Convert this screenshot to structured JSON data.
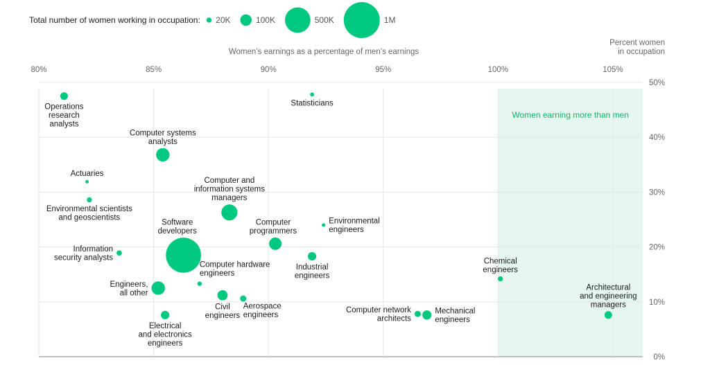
{
  "colors": {
    "bubble": "#00c97f",
    "region_fill": "#e6f7ef",
    "region_label": "#16b16e",
    "grid": "#e6e6e6",
    "baseline": "#999999"
  },
  "legend": {
    "title": "Total number of women working in occupation:",
    "items": [
      {
        "label": "20K",
        "value": 20000
      },
      {
        "label": "100K",
        "value": 100000
      },
      {
        "label": "500K",
        "value": 500000
      },
      {
        "label": "1M",
        "value": 1000000
      }
    ]
  },
  "chart_data": {
    "type": "scatter",
    "xlabel": "Women’s earnings as a percentage of men’s earnings",
    "ylabel": "Percent women in occupation",
    "ylabel_lines": [
      "Percent women",
      "in occupation"
    ],
    "xlim": [
      80,
      106.3
    ],
    "ylim": [
      0,
      50
    ],
    "x_ticks": [
      {
        "value": 80,
        "label": "80%"
      },
      {
        "value": 85,
        "label": "85%"
      },
      {
        "value": 90,
        "label": "90%"
      },
      {
        "value": 95,
        "label": "95%"
      },
      {
        "value": 100,
        "label": "100%"
      },
      {
        "value": 105,
        "label": "105%"
      }
    ],
    "y_ticks": [
      {
        "value": 0,
        "label": "0%"
      },
      {
        "value": 10,
        "label": "10%"
      },
      {
        "value": 20,
        "label": "20%"
      },
      {
        "value": 30,
        "label": "30%"
      },
      {
        "value": 40,
        "label": "40%"
      },
      {
        "value": 50,
        "label": "50%"
      }
    ],
    "shaded_region": {
      "x_from": 100,
      "x_to": 106.3,
      "label": "Women earning more than men"
    },
    "points": [
      {
        "name": "Operations research analysts",
        "label_lines": [
          "Operations",
          "research",
          "analysts"
        ],
        "x": 81.1,
        "y": 47.5,
        "size": 45000,
        "label_pos": "below"
      },
      {
        "name": "Statisticians",
        "label_lines": [
          "Statisticians"
        ],
        "x": 91.9,
        "y": 47.8,
        "size": 13000,
        "label_pos": "below"
      },
      {
        "name": "Computer systems analysts",
        "label_lines": [
          "Computer systems",
          "analysts"
        ],
        "x": 85.4,
        "y": 36.8,
        "size": 140000,
        "label_pos": "above"
      },
      {
        "name": "Actuaries",
        "label_lines": [
          "Actuaries"
        ],
        "x": 82.1,
        "y": 31.9,
        "size": 9000,
        "label_pos": "above"
      },
      {
        "name": "Environmental scientists and geoscientists",
        "label_lines": [
          "Environmental scientists",
          "and geoscientists"
        ],
        "x": 82.2,
        "y": 28.6,
        "size": 20000,
        "label_pos": "below"
      },
      {
        "name": "Computer and information systems managers",
        "label_lines": [
          "Computer and",
          "information systems",
          "managers"
        ],
        "x": 88.3,
        "y": 26.3,
        "size": 200000,
        "label_pos": "above"
      },
      {
        "name": "Computer programmers",
        "label_lines": [
          "Computer",
          "programmers"
        ],
        "x": 90.3,
        "y": 20.6,
        "size": 120000,
        "label_pos": "above-left"
      },
      {
        "name": "Environmental engineers",
        "label_lines": [
          "Environmental",
          "engineers"
        ],
        "x": 92.4,
        "y": 24.0,
        "size": 10000,
        "label_pos": "right"
      },
      {
        "name": "Software developers",
        "label_lines": [
          "Software",
          "developers"
        ],
        "x": 86.3,
        "y": 18.5,
        "size": 950000,
        "label_pos": "above-left"
      },
      {
        "name": "Information security analysts",
        "label_lines": [
          "Information",
          "security analysts"
        ],
        "x": 83.5,
        "y": 18.9,
        "size": 22000,
        "label_pos": "left"
      },
      {
        "name": "Industrial engineers",
        "label_lines": [
          "Industrial",
          "engineers"
        ],
        "x": 91.9,
        "y": 18.3,
        "size": 55000,
        "label_pos": "below"
      },
      {
        "name": "Computer hardware engineers",
        "label_lines": [
          "Computer hardware",
          "engineers"
        ],
        "x": 87.0,
        "y": 13.3,
        "size": 15000,
        "label_pos": "above-right"
      },
      {
        "name": "Engineers, all other",
        "label_lines": [
          "Engineers,",
          "all other"
        ],
        "x": 85.2,
        "y": 12.5,
        "size": 140000,
        "label_pos": "left"
      },
      {
        "name": "Civil engineers",
        "label_lines": [
          "Civil",
          "engineers"
        ],
        "x": 88.0,
        "y": 11.2,
        "size": 80000,
        "label_pos": "below"
      },
      {
        "name": "Aerospace engineers",
        "label_lines": [
          "Aerospace",
          "engineers"
        ],
        "x": 88.9,
        "y": 10.6,
        "size": 30000,
        "label_pos": "below-right"
      },
      {
        "name": "Electrical and electronics engineers",
        "label_lines": [
          "Electrical",
          "and electronics",
          "engineers"
        ],
        "x": 85.5,
        "y": 7.6,
        "size": 55000,
        "label_pos": "below"
      },
      {
        "name": "Computer network architects",
        "label_lines": [
          "Computer network",
          "architects"
        ],
        "x": 96.5,
        "y": 7.8,
        "size": 30000,
        "label_pos": "left"
      },
      {
        "name": "Mechanical engineers",
        "label_lines": [
          "Mechanical",
          "engineers"
        ],
        "x": 96.9,
        "y": 7.6,
        "size": 65000,
        "label_pos": "right"
      },
      {
        "name": "Chemical engineers",
        "label_lines": [
          "Chemical",
          "engineers"
        ],
        "x": 100.1,
        "y": 14.2,
        "size": 20000,
        "label_pos": "above"
      },
      {
        "name": "Architectural and engineering managers",
        "label_lines": [
          "Architectural",
          "and engineering",
          "managers"
        ],
        "x": 104.8,
        "y": 7.6,
        "size": 45000,
        "label_pos": "above"
      }
    ]
  }
}
